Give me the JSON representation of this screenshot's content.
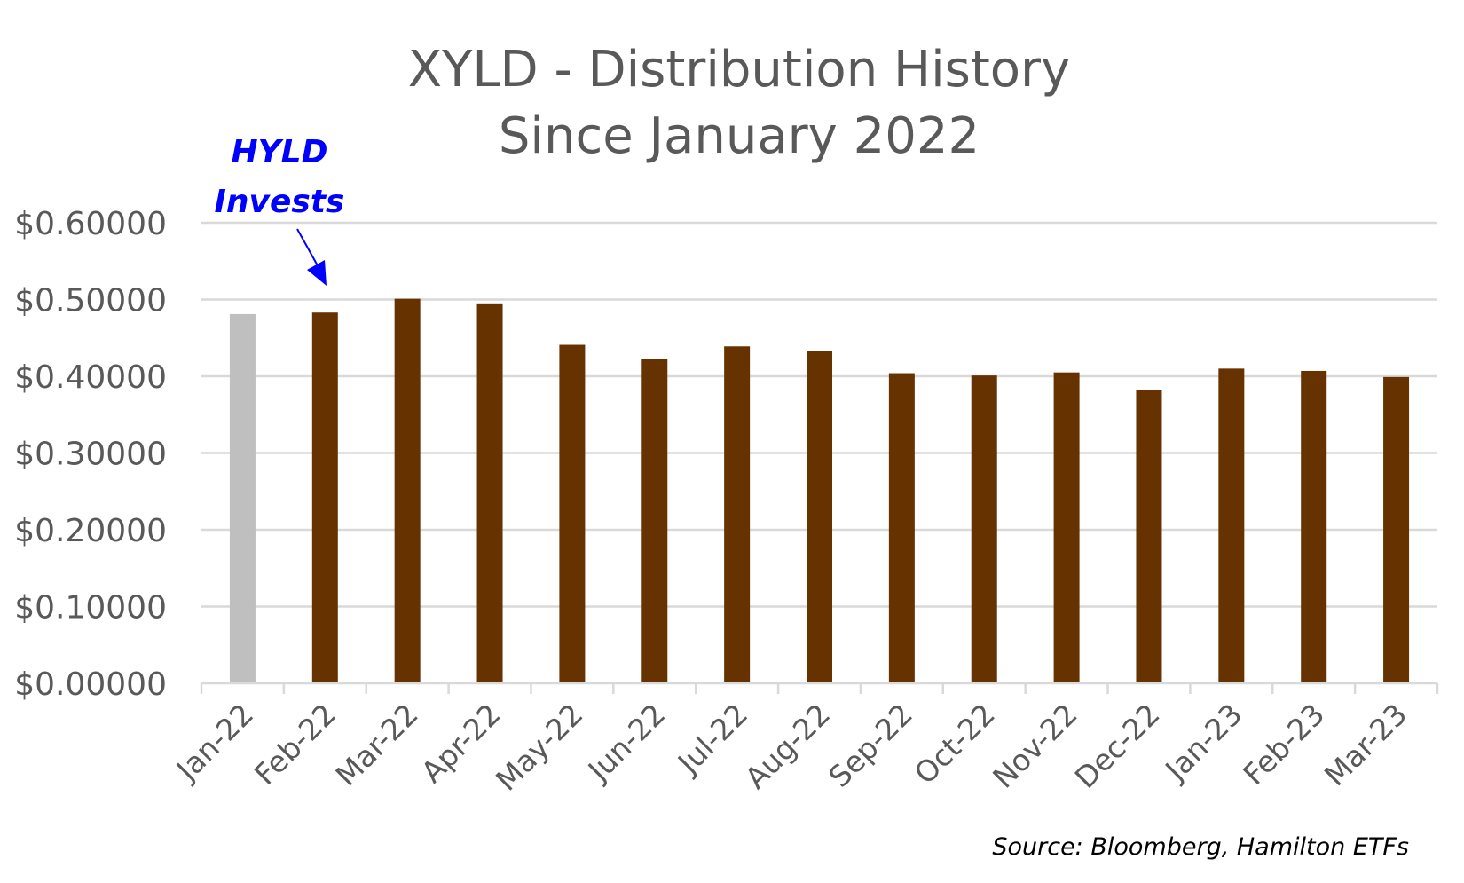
{
  "chart_data": {
    "type": "bar",
    "title_lines": [
      "XYLD - Distribution History",
      "Since January 2022"
    ],
    "xlabel": "",
    "ylabel": "",
    "categories": [
      "Jan-22",
      "Feb-22",
      "Mar-22",
      "Apr-22",
      "May-22",
      "Jun-22",
      "Jul-22",
      "Aug-22",
      "Sep-22",
      "Oct-22",
      "Nov-22",
      "Dec-22",
      "Jan-23",
      "Feb-23",
      "Mar-23"
    ],
    "values": [
      0.481,
      0.483,
      0.501,
      0.495,
      0.441,
      0.423,
      0.439,
      0.433,
      0.404,
      0.401,
      0.405,
      0.382,
      0.41,
      0.407,
      0.399
    ],
    "bar_colors": [
      "#bfbfbf",
      "#663300",
      "#663300",
      "#663300",
      "#663300",
      "#663300",
      "#663300",
      "#663300",
      "#663300",
      "#663300",
      "#663300",
      "#663300",
      "#663300",
      "#663300",
      "#663300"
    ],
    "ylim": [
      0,
      0.6
    ],
    "yticks": [
      0,
      0.1,
      0.2,
      0.3,
      0.4,
      0.5,
      0.6
    ],
    "ytick_labels": [
      "$0.00000",
      "$0.10000",
      "$0.20000",
      "$0.30000",
      "$0.40000",
      "$0.50000",
      "$0.60000"
    ],
    "grid": true,
    "annotation": {
      "lines": [
        "HYLD",
        "Invests"
      ],
      "color": "#0000ff",
      "points_to": "Feb-22"
    },
    "source_note": "Source: Bloomberg,  Hamilton ETFs"
  }
}
